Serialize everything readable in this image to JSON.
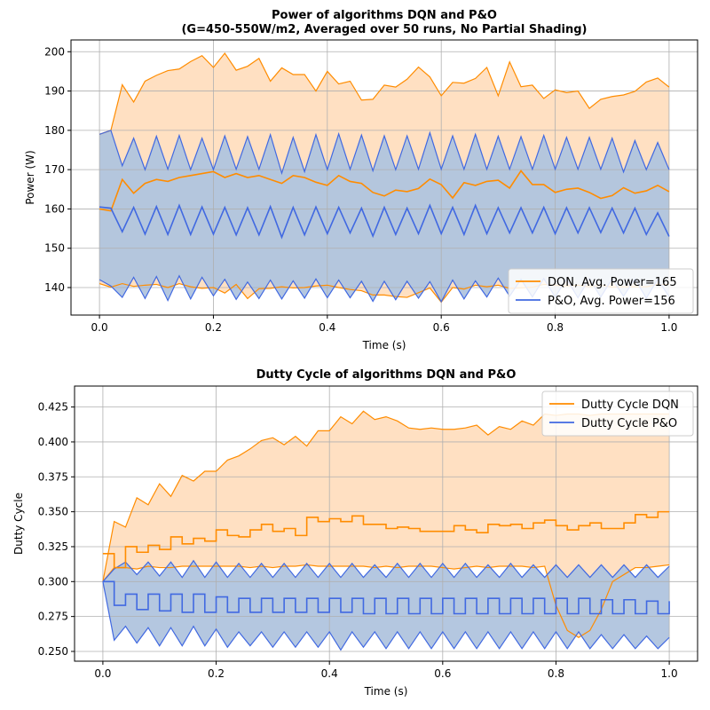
{
  "chart_data": [
    {
      "type": "area",
      "title": [
        "Power of algorithms DQN and P&O",
        "(G=450-550W/m2, Averaged over 50 runs, No Partial Shading)"
      ],
      "xlabel": "Time (s)",
      "ylabel": "Power (W)",
      "xlim": [
        -0.05,
        1.05
      ],
      "ylim": [
        133,
        203
      ],
      "xticks": [
        0.0,
        0.2,
        0.4,
        0.6,
        0.8,
        1.0
      ],
      "xtick_labels": [
        "0.0",
        "0.2",
        "0.4",
        "0.6",
        "0.8",
        "1.0"
      ],
      "yticks": [
        140,
        150,
        160,
        170,
        180,
        190,
        200
      ],
      "ytick_labels": [
        "140",
        "150",
        "160",
        "170",
        "180",
        "190",
        "200"
      ],
      "grid": true,
      "legend_position": "lower-right",
      "x": [
        0,
        0.02,
        0.04,
        0.06,
        0.08,
        0.1,
        0.12,
        0.14,
        0.16,
        0.18,
        0.2,
        0.22,
        0.24,
        0.26,
        0.28,
        0.3,
        0.32,
        0.34,
        0.36,
        0.38,
        0.4,
        0.42,
        0.44,
        0.46,
        0.48,
        0.5,
        0.52,
        0.54,
        0.56,
        0.58,
        0.6,
        0.62,
        0.64,
        0.66,
        0.68,
        0.7,
        0.72,
        0.74,
        0.76,
        0.78,
        0.8,
        0.82,
        0.84,
        0.86,
        0.88,
        0.9,
        0.92,
        0.94,
        0.96,
        0.98,
        1.0
      ],
      "series": [
        {
          "name": "DQN, Avg. Power=165",
          "color": "#ff8c00",
          "fill": "#ffe0c2",
          "step": false,
          "mean": [
            160,
            159.5,
            167.5,
            164,
            166.5,
            167.5,
            167,
            168,
            168.5,
            169,
            169.5,
            168,
            169,
            168,
            168.5,
            167.5,
            166.5,
            168.5,
            168,
            166.8,
            166,
            168.5,
            167,
            166.5,
            164.2,
            163.3,
            164.8,
            164.4,
            165.2,
            167.6,
            166.2,
            162.8,
            166.7,
            166,
            167,
            167.3,
            165.3,
            169.7,
            166.2,
            166.2,
            164.2,
            165,
            165.3,
            164.2,
            162.7,
            163.4,
            165.4,
            164,
            164.6,
            166,
            164.4
          ],
          "upper": [
            179,
            180,
            191.6,
            187.2,
            192.5,
            194,
            195.2,
            195.6,
            197.5,
            199,
            196,
            199.6,
            195.3,
            196.3,
            198.3,
            192.5,
            195.9,
            194.2,
            194.2,
            190,
            195,
            191.8,
            192.5,
            187.7,
            187.9,
            191.5,
            191,
            193,
            196.1,
            193.6,
            188.8,
            192.2,
            192,
            193.2,
            196,
            188.8,
            197.4,
            191.1,
            191.5,
            188.1,
            190.3,
            189.6,
            190,
            185.6,
            187.9,
            188.6,
            189,
            189.9,
            192.3,
            193.3,
            191
          ],
          "lower": [
            141,
            140.1,
            141,
            140.3,
            140.6,
            140.8,
            140,
            141,
            140.2,
            139.8,
            140,
            138.6,
            140.8,
            137.2,
            139.7,
            139.8,
            140.2,
            139.9,
            140,
            140.4,
            140.6,
            140,
            139.5,
            139.2,
            138.1,
            138.1,
            137.7,
            137.5,
            138.7,
            139.9,
            136.3,
            140,
            139.6,
            140.6,
            140.2,
            140.6,
            139.8,
            139.9,
            140.1,
            140.8,
            140.6,
            140.4,
            140.6,
            140.2,
            140.6,
            140.1,
            140.2,
            140.2,
            140.2,
            140.8,
            140.8
          ]
        },
        {
          "name": "P&O, Avg. Power=156",
          "color": "#4169e1",
          "fill": "#b0c4de",
          "step": false,
          "mean": [
            160.5,
            160.2,
            154.2,
            160.4,
            153.6,
            160.6,
            153.5,
            160.9,
            153.5,
            160.5,
            153.6,
            160.4,
            153.4,
            160.3,
            153.4,
            160.6,
            152.8,
            160.4,
            153.4,
            160.5,
            153.7,
            160.4,
            153.9,
            160.2,
            153.1,
            160.4,
            153.5,
            160.2,
            153.7,
            160.9,
            153.7,
            160.4,
            153.5,
            160.9,
            153.7,
            160.3,
            153.9,
            160.3,
            153.9,
            160.4,
            153.7,
            160.3,
            153.9,
            160.3,
            154.0,
            160.2,
            153.9,
            160.2,
            153.5,
            159.0,
            153.0
          ],
          "upper": [
            179,
            180,
            171,
            178,
            170,
            178.5,
            170.1,
            178.7,
            170,
            178,
            170,
            178.6,
            170.1,
            178.4,
            170.1,
            178.9,
            169.1,
            178.2,
            169.5,
            178.9,
            170,
            179.1,
            170.1,
            178.8,
            169.7,
            178.6,
            170,
            178.6,
            170.1,
            179.4,
            170.1,
            178.6,
            170.1,
            179,
            170.1,
            178.5,
            170.1,
            178.4,
            170.1,
            178.7,
            170.1,
            178.2,
            170.1,
            178.2,
            170.1,
            178,
            169.4,
            177.4,
            170,
            176.9,
            170
          ],
          "lower": [
            142,
            140.4,
            137.5,
            142.6,
            137.2,
            142.8,
            136.7,
            143,
            137.1,
            142.6,
            137.9,
            142.1,
            137,
            141.4,
            137.2,
            141.9,
            137.1,
            141.7,
            137.3,
            142.2,
            137.4,
            141.9,
            137.4,
            141.6,
            136.5,
            141.6,
            136.9,
            141.6,
            137.3,
            141.5,
            136.4,
            141.9,
            137.1,
            141.7,
            137.6,
            142.4,
            137.8,
            142.1,
            137.6,
            142.3,
            137.6,
            142.2,
            137.4,
            142.3,
            137.6,
            142.2,
            137.8,
            142.2,
            137.3,
            142.1,
            137.7
          ]
        }
      ]
    },
    {
      "type": "area",
      "title": [
        "Dutty Cycle of algorithms DQN and P&O"
      ],
      "xlabel": "Time (s)",
      "ylabel": "Dutty Cycle",
      "xlim": [
        -0.05,
        1.05
      ],
      "ylim": [
        0.243,
        0.44
      ],
      "xticks": [
        0.0,
        0.2,
        0.4,
        0.6,
        0.8,
        1.0
      ],
      "xtick_labels": [
        "0.0",
        "0.2",
        "0.4",
        "0.6",
        "0.8",
        "1.0"
      ],
      "yticks": [
        0.25,
        0.275,
        0.3,
        0.325,
        0.35,
        0.375,
        0.4,
        0.425
      ],
      "ytick_labels": [
        "0.250",
        "0.275",
        "0.300",
        "0.325",
        "0.350",
        "0.375",
        "0.400",
        "0.425"
      ],
      "grid": true,
      "legend_position": "upper-right",
      "x": [
        0,
        0.02,
        0.04,
        0.06,
        0.08,
        0.1,
        0.12,
        0.14,
        0.16,
        0.18,
        0.2,
        0.22,
        0.24,
        0.26,
        0.28,
        0.3,
        0.32,
        0.34,
        0.36,
        0.38,
        0.4,
        0.42,
        0.44,
        0.46,
        0.48,
        0.5,
        0.52,
        0.54,
        0.56,
        0.58,
        0.6,
        0.62,
        0.64,
        0.66,
        0.68,
        0.7,
        0.72,
        0.74,
        0.76,
        0.78,
        0.8,
        0.82,
        0.84,
        0.86,
        0.88,
        0.9,
        0.92,
        0.94,
        0.96,
        0.98,
        1.0
      ],
      "series": [
        {
          "name": "Dutty Cycle DQN",
          "color": "#ff8c00",
          "fill": "#ffe0c2",
          "step": true,
          "mean": [
            0.32,
            0.31,
            0.325,
            0.321,
            0.326,
            0.323,
            0.332,
            0.327,
            0.331,
            0.329,
            0.337,
            0.333,
            0.332,
            0.337,
            0.341,
            0.336,
            0.338,
            0.333,
            0.346,
            0.343,
            0.345,
            0.343,
            0.347,
            0.341,
            0.341,
            0.338,
            0.339,
            0.338,
            0.336,
            0.336,
            0.336,
            0.34,
            0.337,
            0.335,
            0.341,
            0.34,
            0.341,
            0.338,
            0.342,
            0.344,
            0.34,
            0.337,
            0.34,
            0.342,
            0.338,
            0.338,
            0.342,
            0.348,
            0.346,
            0.35,
            0.35
          ],
          "upper": [
            0.3,
            0.343,
            0.339,
            0.36,
            0.355,
            0.37,
            0.361,
            0.376,
            0.372,
            0.379,
            0.379,
            0.387,
            0.39,
            0.395,
            0.401,
            0.403,
            0.398,
            0.404,
            0.397,
            0.408,
            0.408,
            0.418,
            0.413,
            0.422,
            0.416,
            0.418,
            0.415,
            0.41,
            0.409,
            0.41,
            0.409,
            0.409,
            0.41,
            0.412,
            0.405,
            0.411,
            0.409,
            0.415,
            0.412,
            0.42,
            0.419,
            0.42,
            0.42,
            0.419,
            0.42,
            0.42,
            0.42,
            0.42,
            0.42,
            0.42,
            0.42
          ],
          "lower": [
            0.3,
            0.31,
            0.31,
            0.309,
            0.311,
            0.31,
            0.31,
            0.311,
            0.311,
            0.311,
            0.311,
            0.311,
            0.311,
            0.31,
            0.311,
            0.31,
            0.311,
            0.311,
            0.312,
            0.311,
            0.311,
            0.311,
            0.311,
            0.311,
            0.31,
            0.311,
            0.31,
            0.311,
            0.311,
            0.311,
            0.31,
            0.309,
            0.31,
            0.311,
            0.31,
            0.311,
            0.311,
            0.311,
            0.31,
            0.311,
            0.283,
            0.265,
            0.26,
            0.265,
            0.28,
            0.3,
            0.305,
            0.31,
            0.31,
            0.311,
            0.312
          ]
        },
        {
          "name": "Dutty Cycle P&O",
          "color": "#4169e1",
          "fill": "#b0c4de",
          "step": true,
          "mean": [
            0.3,
            0.283,
            0.291,
            0.28,
            0.291,
            0.279,
            0.291,
            0.278,
            0.291,
            0.278,
            0.289,
            0.278,
            0.288,
            0.278,
            0.288,
            0.278,
            0.288,
            0.278,
            0.288,
            0.278,
            0.288,
            0.278,
            0.288,
            0.277,
            0.288,
            0.277,
            0.288,
            0.277,
            0.288,
            0.277,
            0.288,
            0.277,
            0.288,
            0.277,
            0.288,
            0.277,
            0.288,
            0.277,
            0.288,
            0.277,
            0.288,
            0.277,
            0.288,
            0.277,
            0.287,
            0.277,
            0.287,
            0.277,
            0.286,
            0.277,
            0.286
          ],
          "upper": [
            0.3,
            0.309,
            0.314,
            0.305,
            0.314,
            0.304,
            0.314,
            0.303,
            0.315,
            0.303,
            0.314,
            0.303,
            0.313,
            0.303,
            0.313,
            0.303,
            0.313,
            0.303,
            0.313,
            0.303,
            0.313,
            0.303,
            0.313,
            0.303,
            0.312,
            0.303,
            0.313,
            0.303,
            0.313,
            0.303,
            0.313,
            0.303,
            0.313,
            0.303,
            0.312,
            0.303,
            0.313,
            0.303,
            0.312,
            0.303,
            0.312,
            0.303,
            0.312,
            0.303,
            0.312,
            0.303,
            0.312,
            0.303,
            0.312,
            0.303,
            0.311
          ],
          "lower": [
            0.3,
            0.258,
            0.268,
            0.256,
            0.267,
            0.254,
            0.267,
            0.254,
            0.268,
            0.254,
            0.266,
            0.253,
            0.264,
            0.254,
            0.264,
            0.253,
            0.264,
            0.253,
            0.264,
            0.253,
            0.264,
            0.251,
            0.264,
            0.253,
            0.264,
            0.252,
            0.264,
            0.252,
            0.264,
            0.252,
            0.264,
            0.252,
            0.264,
            0.252,
            0.264,
            0.252,
            0.264,
            0.252,
            0.264,
            0.252,
            0.264,
            0.252,
            0.264,
            0.252,
            0.262,
            0.252,
            0.262,
            0.252,
            0.261,
            0.252,
            0.26
          ]
        }
      ]
    }
  ]
}
